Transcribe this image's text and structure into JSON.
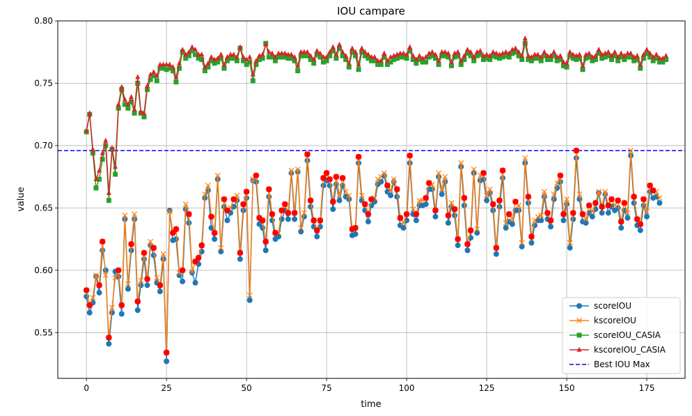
{
  "chart_data": {
    "type": "line",
    "title": "IOU campare",
    "xlabel": "time",
    "ylabel": "value",
    "xlim": [
      -8.95,
      186.95
    ],
    "ylim": [
      0.5133,
      0.8
    ],
    "xticks": [
      0,
      25,
      50,
      75,
      100,
      125,
      150,
      175
    ],
    "yticks": [
      0.55,
      0.6,
      0.65,
      0.7,
      0.75,
      0.8
    ],
    "xtick_labels": [
      "0",
      "25",
      "50",
      "75",
      "100",
      "125",
      "150",
      "175"
    ],
    "ytick_labels": [
      "0.55",
      "0.60",
      "0.65",
      "0.70",
      "0.75",
      "0.80"
    ],
    "grid": true,
    "legend_position": "lower-right",
    "reference_line": {
      "name": "Best IOU Max",
      "y": 0.696,
      "color": "#0000ff",
      "style": "dashed"
    },
    "highlight": {
      "color": "#ff0000",
      "description": "max of scoreIOU and kscoreIOU where kscoreIOU is higher"
    },
    "series": [
      {
        "name": "scoreIOU",
        "color": "#1f77b4",
        "marker": "circle",
        "values": [
          0.579,
          0.566,
          0.574,
          0.595,
          0.582,
          0.616,
          0.6,
          0.541,
          0.566,
          0.599,
          0.595,
          0.565,
          0.641,
          0.585,
          0.616,
          0.641,
          0.568,
          0.588,
          0.609,
          0.588,
          0.62,
          0.612,
          0.59,
          0.583,
          0.609,
          0.527,
          0.648,
          0.624,
          0.625,
          0.596,
          0.591,
          0.649,
          0.638,
          0.598,
          0.59,
          0.605,
          0.615,
          0.658,
          0.664,
          0.634,
          0.625,
          0.673,
          0.615,
          0.651,
          0.64,
          0.646,
          0.651,
          0.656,
          0.609,
          0.648,
          0.658,
          0.576,
          0.672,
          0.671,
          0.637,
          0.634,
          0.616,
          0.659,
          0.64,
          0.625,
          0.627,
          0.641,
          0.648,
          0.641,
          0.678,
          0.641,
          0.679,
          0.631,
          0.643,
          0.688,
          0.651,
          0.635,
          0.627,
          0.635,
          0.668,
          0.672,
          0.668,
          0.649,
          0.669,
          0.656,
          0.668,
          0.659,
          0.657,
          0.628,
          0.629,
          0.686,
          0.656,
          0.648,
          0.639,
          0.652,
          0.655,
          0.669,
          0.671,
          0.676,
          0.663,
          0.66,
          0.671,
          0.659,
          0.636,
          0.634,
          0.64,
          0.686,
          0.645,
          0.64,
          0.652,
          0.652,
          0.653,
          0.665,
          0.665,
          0.643,
          0.675,
          0.661,
          0.671,
          0.638,
          0.651,
          0.644,
          0.62,
          0.683,
          0.652,
          0.616,
          0.626,
          0.678,
          0.63,
          0.672,
          0.673,
          0.656,
          0.662,
          0.648,
          0.613,
          0.651,
          0.674,
          0.634,
          0.639,
          0.637,
          0.648,
          0.648,
          0.619,
          0.686,
          0.654,
          0.622,
          0.636,
          0.64,
          0.64,
          0.659,
          0.641,
          0.635,
          0.657,
          0.666,
          0.671,
          0.64,
          0.653,
          0.618,
          0.641,
          0.69,
          0.657,
          0.639,
          0.638,
          0.646,
          0.643,
          0.649,
          0.662,
          0.646,
          0.661,
          0.646,
          0.651,
          0.648,
          0.65,
          0.634,
          0.648,
          0.642,
          0.692,
          0.654,
          0.636,
          0.632,
          0.652,
          0.643,
          0.663,
          0.658,
          0.659,
          0.654
        ]
      },
      {
        "name": "kscoreIOU",
        "color": "#ff7f0e",
        "marker": "x",
        "values": [
          0.584,
          0.572,
          0.578,
          0.596,
          0.588,
          0.623,
          0.596,
          0.546,
          0.57,
          0.594,
          0.6,
          0.572,
          0.644,
          0.589,
          0.621,
          0.645,
          0.575,
          0.592,
          0.614,
          0.593,
          0.623,
          0.618,
          0.594,
          0.588,
          0.613,
          0.534,
          0.647,
          0.63,
          0.633,
          0.598,
          0.6,
          0.653,
          0.645,
          0.599,
          0.607,
          0.61,
          0.62,
          0.661,
          0.668,
          0.643,
          0.63,
          0.676,
          0.618,
          0.657,
          0.648,
          0.65,
          0.657,
          0.66,
          0.614,
          0.653,
          0.663,
          0.58,
          0.673,
          0.676,
          0.642,
          0.64,
          0.623,
          0.665,
          0.645,
          0.63,
          0.63,
          0.648,
          0.653,
          0.646,
          0.68,
          0.646,
          0.681,
          0.634,
          0.646,
          0.693,
          0.656,
          0.64,
          0.632,
          0.64,
          0.674,
          0.678,
          0.673,
          0.655,
          0.675,
          0.66,
          0.674,
          0.663,
          0.66,
          0.633,
          0.634,
          0.691,
          0.66,
          0.653,
          0.645,
          0.657,
          0.658,
          0.673,
          0.675,
          0.678,
          0.668,
          0.664,
          0.673,
          0.665,
          0.642,
          0.638,
          0.645,
          0.692,
          0.649,
          0.645,
          0.656,
          0.656,
          0.658,
          0.67,
          0.669,
          0.648,
          0.678,
          0.665,
          0.675,
          0.644,
          0.654,
          0.649,
          0.625,
          0.686,
          0.658,
          0.621,
          0.632,
          0.681,
          0.633,
          0.676,
          0.678,
          0.66,
          0.665,
          0.653,
          0.618,
          0.656,
          0.68,
          0.638,
          0.645,
          0.641,
          0.655,
          0.652,
          0.622,
          0.69,
          0.659,
          0.627,
          0.64,
          0.643,
          0.644,
          0.663,
          0.646,
          0.64,
          0.661,
          0.67,
          0.676,
          0.645,
          0.657,
          0.622,
          0.646,
          0.696,
          0.661,
          0.645,
          0.641,
          0.652,
          0.647,
          0.654,
          0.663,
          0.651,
          0.663,
          0.652,
          0.657,
          0.652,
          0.656,
          0.639,
          0.654,
          0.646,
          0.696,
          0.659,
          0.641,
          0.637,
          0.657,
          0.647,
          0.668,
          0.664,
          0.663,
          0.658
        ]
      },
      {
        "name": "scoreIOU_CASIA",
        "color": "#2ca02c",
        "marker": "square",
        "values": [
          0.711,
          0.725,
          0.694,
          0.666,
          0.673,
          0.689,
          0.7,
          0.656,
          0.697,
          0.677,
          0.73,
          0.745,
          0.733,
          0.73,
          0.735,
          0.726,
          0.75,
          0.726,
          0.723,
          0.745,
          0.753,
          0.756,
          0.752,
          0.762,
          0.762,
          0.761,
          0.762,
          0.76,
          0.751,
          0.762,
          0.775,
          0.77,
          0.772,
          0.776,
          0.773,
          0.77,
          0.769,
          0.76,
          0.763,
          0.768,
          0.766,
          0.767,
          0.77,
          0.762,
          0.768,
          0.77,
          0.77,
          0.768,
          0.778,
          0.768,
          0.765,
          0.767,
          0.752,
          0.765,
          0.769,
          0.77,
          0.782,
          0.771,
          0.771,
          0.768,
          0.771,
          0.771,
          0.771,
          0.77,
          0.77,
          0.768,
          0.76,
          0.772,
          0.772,
          0.772,
          0.769,
          0.766,
          0.773,
          0.771,
          0.767,
          0.768,
          0.772,
          0.776,
          0.77,
          0.778,
          0.772,
          0.769,
          0.763,
          0.775,
          0.772,
          0.761,
          0.775,
          0.772,
          0.77,
          0.768,
          0.768,
          0.765,
          0.765,
          0.771,
          0.765,
          0.767,
          0.769,
          0.77,
          0.771,
          0.771,
          0.77,
          0.776,
          0.769,
          0.766,
          0.769,
          0.767,
          0.767,
          0.771,
          0.772,
          0.77,
          0.765,
          0.772,
          0.772,
          0.771,
          0.764,
          0.771,
          0.772,
          0.765,
          0.769,
          0.774,
          0.772,
          0.768,
          0.772,
          0.773,
          0.769,
          0.77,
          0.769,
          0.772,
          0.771,
          0.77,
          0.771,
          0.772,
          0.771,
          0.774,
          0.775,
          0.772,
          0.769,
          0.782,
          0.769,
          0.768,
          0.77,
          0.77,
          0.768,
          0.772,
          0.769,
          0.769,
          0.772,
          0.768,
          0.769,
          0.764,
          0.763,
          0.772,
          0.77,
          0.769,
          0.77,
          0.761,
          0.77,
          0.771,
          0.768,
          0.769,
          0.774,
          0.77,
          0.771,
          0.772,
          0.769,
          0.772,
          0.768,
          0.771,
          0.769,
          0.771,
          0.771,
          0.768,
          0.769,
          0.762,
          0.77,
          0.774,
          0.771,
          0.768,
          0.77,
          0.767,
          0.767,
          0.769
        ]
      },
      {
        "name": "kscoreIOU_CASIA",
        "color": "#d62728",
        "marker": "triangle",
        "values": [
          0.712,
          0.726,
          0.697,
          0.673,
          0.68,
          0.694,
          0.704,
          0.662,
          0.698,
          0.683,
          0.733,
          0.747,
          0.737,
          0.733,
          0.739,
          0.729,
          0.755,
          0.727,
          0.726,
          0.748,
          0.757,
          0.759,
          0.756,
          0.765,
          0.765,
          0.765,
          0.765,
          0.763,
          0.755,
          0.766,
          0.777,
          0.773,
          0.775,
          0.779,
          0.777,
          0.773,
          0.773,
          0.763,
          0.766,
          0.771,
          0.769,
          0.77,
          0.773,
          0.765,
          0.771,
          0.773,
          0.773,
          0.771,
          0.779,
          0.771,
          0.769,
          0.771,
          0.757,
          0.768,
          0.772,
          0.773,
          0.781,
          0.775,
          0.774,
          0.771,
          0.774,
          0.774,
          0.774,
          0.773,
          0.773,
          0.771,
          0.764,
          0.775,
          0.775,
          0.775,
          0.772,
          0.769,
          0.776,
          0.774,
          0.771,
          0.771,
          0.775,
          0.779,
          0.773,
          0.781,
          0.775,
          0.772,
          0.766,
          0.778,
          0.775,
          0.765,
          0.778,
          0.775,
          0.773,
          0.771,
          0.771,
          0.768,
          0.768,
          0.774,
          0.768,
          0.771,
          0.772,
          0.773,
          0.774,
          0.774,
          0.773,
          0.779,
          0.772,
          0.769,
          0.772,
          0.77,
          0.771,
          0.774,
          0.775,
          0.773,
          0.768,
          0.775,
          0.775,
          0.774,
          0.767,
          0.774,
          0.775,
          0.768,
          0.772,
          0.777,
          0.775,
          0.771,
          0.775,
          0.776,
          0.772,
          0.773,
          0.772,
          0.775,
          0.774,
          0.773,
          0.774,
          0.775,
          0.774,
          0.777,
          0.778,
          0.775,
          0.772,
          0.786,
          0.772,
          0.771,
          0.773,
          0.773,
          0.771,
          0.775,
          0.772,
          0.772,
          0.775,
          0.771,
          0.772,
          0.767,
          0.766,
          0.775,
          0.773,
          0.772,
          0.773,
          0.764,
          0.773,
          0.774,
          0.771,
          0.772,
          0.777,
          0.773,
          0.774,
          0.775,
          0.772,
          0.775,
          0.771,
          0.774,
          0.772,
          0.774,
          0.774,
          0.771,
          0.772,
          0.765,
          0.773,
          0.777,
          0.774,
          0.771,
          0.773,
          0.77,
          0.77,
          0.772
        ]
      }
    ]
  }
}
